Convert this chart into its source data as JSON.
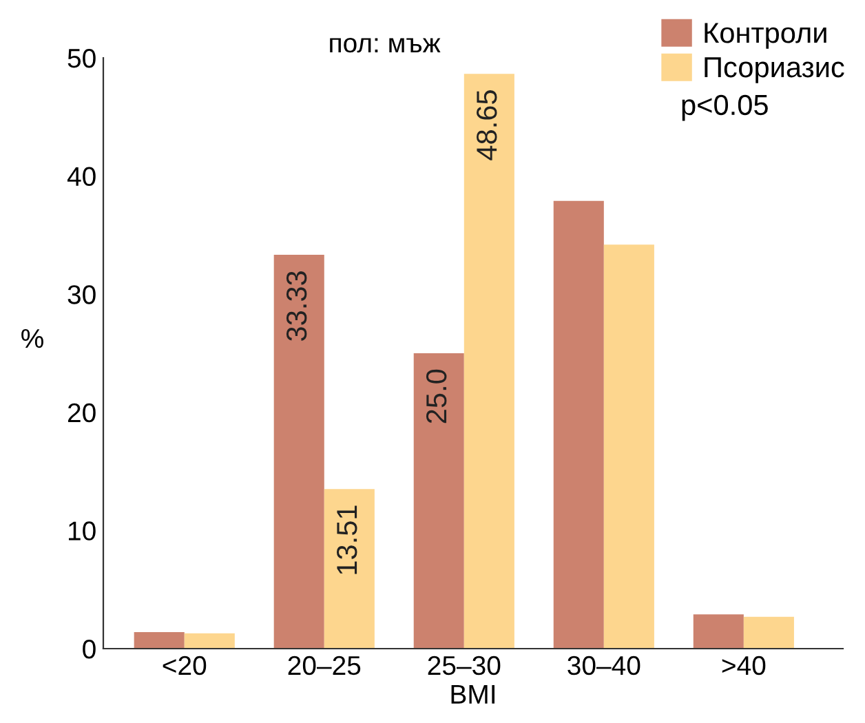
{
  "chart_data": {
    "type": "bar",
    "title": "пол: мъж",
    "xlabel": "BMI",
    "ylabel": "%",
    "categories": [
      "<20",
      "20–25",
      "25–30",
      "30–40",
      ">40"
    ],
    "series": [
      {
        "name": "Контроли",
        "color": "#cc826e",
        "values": [
          1.4,
          33.33,
          25.0,
          37.9,
          2.9
        ],
        "value_labels": [
          null,
          "33.33",
          "25.0",
          null,
          null
        ]
      },
      {
        "name": "Псориазис",
        "color": "#fdd68e",
        "values": [
          1.3,
          13.51,
          48.65,
          34.2,
          2.7
        ],
        "value_labels": [
          null,
          "13.51",
          "48.65",
          null,
          null
        ]
      }
    ],
    "ylim": [
      0,
      50
    ],
    "yticks": [
      0,
      10,
      20,
      30,
      40,
      50
    ],
    "grid": false,
    "legend": "top right",
    "annotations": [
      "p<0.05"
    ]
  }
}
